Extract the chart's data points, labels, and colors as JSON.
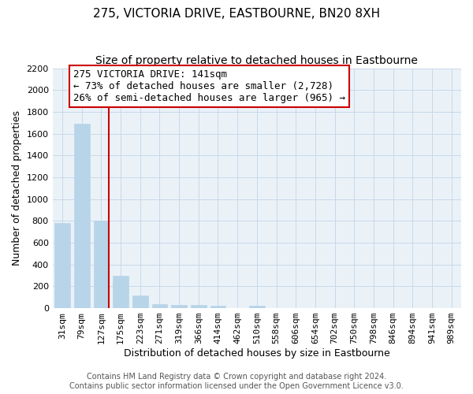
{
  "title": "275, VICTORIA DRIVE, EASTBOURNE, BN20 8XH",
  "subtitle": "Size of property relative to detached houses in Eastbourne",
  "xlabel": "Distribution of detached houses by size in Eastbourne",
  "ylabel": "Number of detached properties",
  "bar_labels": [
    "31sqm",
    "79sqm",
    "127sqm",
    "175sqm",
    "223sqm",
    "271sqm",
    "319sqm",
    "366sqm",
    "414sqm",
    "462sqm",
    "510sqm",
    "558sqm",
    "606sqm",
    "654sqm",
    "702sqm",
    "750sqm",
    "798sqm",
    "846sqm",
    "894sqm",
    "941sqm",
    "989sqm"
  ],
  "bar_values": [
    780,
    1690,
    800,
    295,
    115,
    40,
    30,
    30,
    20,
    0,
    20,
    0,
    0,
    0,
    0,
    0,
    0,
    0,
    0,
    0,
    0
  ],
  "bar_color": "#b8d4e8",
  "property_line_index": 2,
  "property_line_label": "275 VICTORIA DRIVE: 141sqm",
  "annotation_line1": "← 73% of detached houses are smaller (2,728)",
  "annotation_line2": "26% of semi-detached houses are larger (965) →",
  "annotation_box_color": "white",
  "annotation_box_edge": "#cc0000",
  "vline_color": "#cc0000",
  "ylim": [
    0,
    2200
  ],
  "yticks": [
    0,
    200,
    400,
    600,
    800,
    1000,
    1200,
    1400,
    1600,
    1800,
    2000,
    2200
  ],
  "footnote1": "Contains HM Land Registry data © Crown copyright and database right 2024.",
  "footnote2": "Contains public sector information licensed under the Open Government Licence v3.0.",
  "title_fontsize": 11,
  "subtitle_fontsize": 10,
  "axis_label_fontsize": 9,
  "tick_fontsize": 8,
  "annotation_fontsize": 9,
  "footnote_fontsize": 7,
  "grid_color": "#c8d8e8",
  "bg_color": "#eaf2f8"
}
